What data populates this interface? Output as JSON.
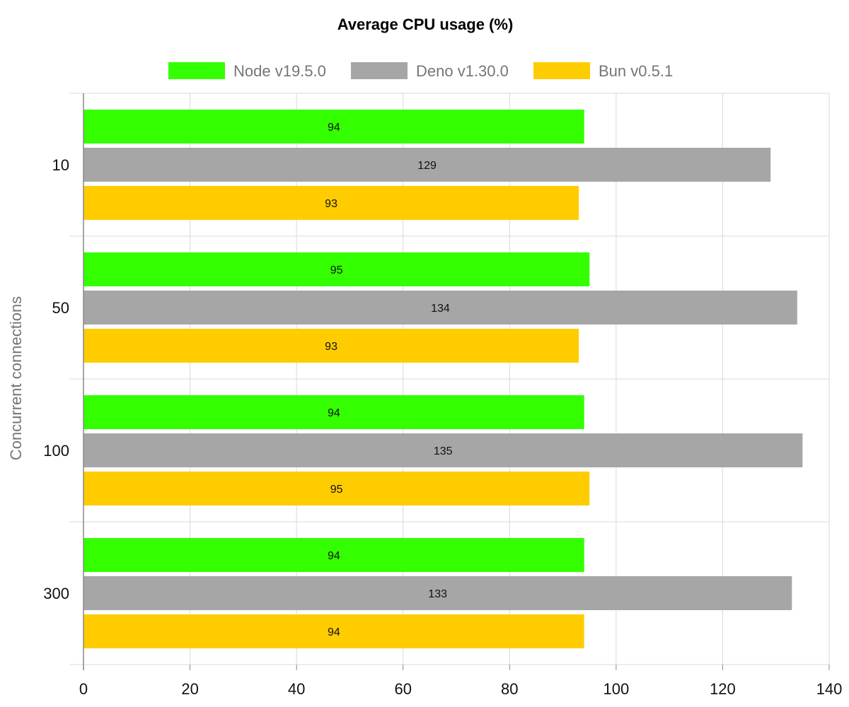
{
  "chart_data": {
    "type": "bar",
    "orientation": "horizontal",
    "title": "Average CPU usage (%)",
    "xlabel": "",
    "ylabel": "Concurrent connections",
    "categories": [
      "10",
      "50",
      "100",
      "300"
    ],
    "xlim": [
      0,
      140
    ],
    "x_ticks": [
      "0",
      "20",
      "40",
      "60",
      "80",
      "100",
      "120",
      "140"
    ],
    "grid": true,
    "legend_position": "top",
    "series": [
      {
        "name": "Node v19.5.0",
        "color": "#33ff00",
        "values": [
          94,
          95,
          94,
          94
        ]
      },
      {
        "name": "Deno v1.30.0",
        "color": "#a6a6a6",
        "values": [
          129,
          134,
          135,
          133
        ]
      },
      {
        "name": "Bun v0.5.1",
        "color": "#ffcc00",
        "values": [
          93,
          93,
          95,
          94
        ]
      }
    ]
  }
}
